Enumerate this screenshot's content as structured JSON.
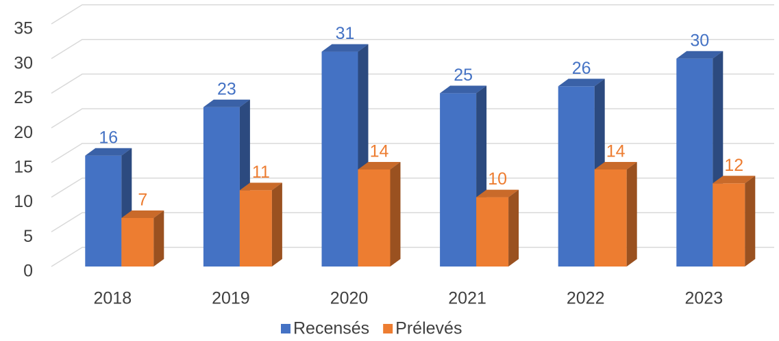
{
  "chart_data": {
    "type": "bar3d",
    "categories": [
      "2018",
      "2019",
      "2020",
      "2021",
      "2022",
      "2023"
    ],
    "series": [
      {
        "name": "Recensés",
        "color": "#4472c4",
        "values": [
          16,
          23,
          31,
          25,
          26,
          30
        ]
      },
      {
        "name": "Prélevés",
        "color": "#ed7d31",
        "values": [
          7,
          11,
          14,
          10,
          14,
          12
        ]
      }
    ],
    "ylim": [
      0,
      35
    ],
    "yticks": [
      0,
      5,
      10,
      15,
      20,
      25,
      30,
      35
    ],
    "grid": true,
    "legend": "bottom"
  }
}
